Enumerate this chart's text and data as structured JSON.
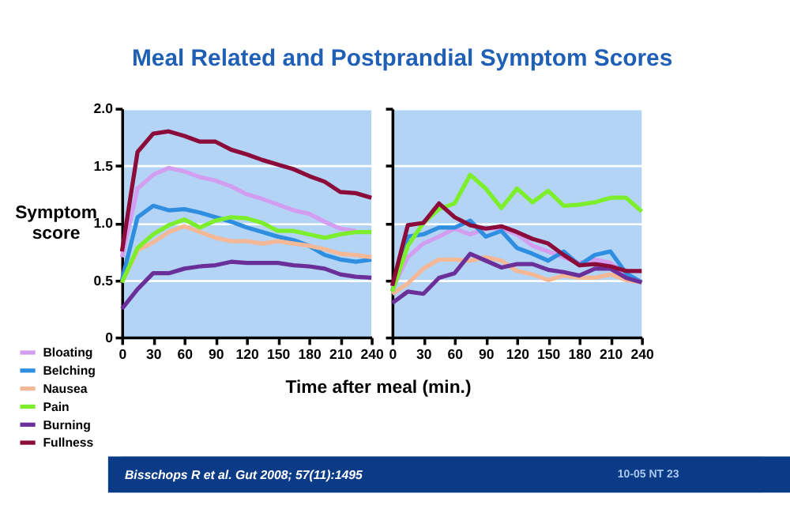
{
  "chart_data": [
    {
      "type": "line",
      "title": "Meal Related and Postprandial Symptom Scores",
      "ylabel": "Symptom score",
      "xlabel": "Time after meal (min.)",
      "annotations": [
        "Bisschops R et al. Gut 2008; 57(11):1495",
        "10-05 NT 23"
      ],
      "x": [
        0,
        15,
        30,
        45,
        60,
        75,
        90,
        105,
        120,
        135,
        150,
        165,
        180,
        195,
        210,
        225,
        240
      ],
      "xlim": [
        0,
        240
      ],
      "xticks": [
        0,
        30,
        60,
        90,
        120,
        150,
        180,
        210,
        240
      ],
      "ylim": [
        0,
        2
      ],
      "yticks": [
        {
          "value": 0,
          "label": "0"
        },
        0.5,
        {
          "value": 1,
          "label": "1.0"
        },
        1.5,
        {
          "value": 2,
          "label": "2.0"
        }
      ],
      "grid": "y",
      "legend": "bottom left",
      "marker": "none",
      "line_style": "solid",
      "series": [
        {
          "name": "Bloating",
          "color": "#d49ef0",
          "values": [
            0.7,
            1.3,
            1.42,
            1.48,
            1.45,
            1.4,
            1.37,
            1.32,
            1.25,
            1.21,
            1.16,
            1.11,
            1.08,
            1.01,
            0.95,
            0.93,
            null
          ]
        },
        {
          "name": "Belching",
          "color": "#2f8ee0",
          "values": [
            0.5,
            1.05,
            1.15,
            1.11,
            1.12,
            1.09,
            1.05,
            1.01,
            0.96,
            0.92,
            0.88,
            0.85,
            0.8,
            0.72,
            0.68,
            0.66,
            0.68
          ]
        },
        {
          "name": "Nausea",
          "color": "#f5b897",
          "values": [
            0.48,
            0.76,
            0.83,
            0.92,
            0.97,
            0.92,
            0.87,
            0.84,
            0.84,
            0.82,
            0.84,
            0.82,
            0.8,
            0.77,
            0.73,
            0.72,
            0.7
          ]
        },
        {
          "name": "Pain",
          "color": "#7cee2c",
          "values": [
            0.48,
            0.78,
            0.9,
            0.98,
            1.03,
            0.96,
            1.02,
            1.05,
            1.04,
            1.0,
            0.93,
            0.93,
            0.9,
            0.87,
            0.9,
            0.92,
            0.92
          ]
        },
        {
          "name": "Burning",
          "color": "#6b2f9a",
          "values": [
            0.25,
            0.42,
            0.56,
            0.56,
            0.6,
            0.62,
            0.63,
            0.66,
            0.65,
            0.65,
            0.65,
            0.63,
            0.62,
            0.6,
            0.55,
            0.53,
            0.52
          ]
        },
        {
          "name": "Fullness",
          "color": "#8b0c3a",
          "values": [
            0.75,
            1.62,
            1.78,
            1.8,
            1.76,
            1.71,
            1.71,
            1.64,
            1.6,
            1.55,
            1.51,
            1.47,
            1.41,
            1.36,
            1.27,
            1.26,
            1.22
          ]
        }
      ]
    },
    {
      "type": "line",
      "x": [
        0,
        15,
        30,
        45,
        60,
        75,
        90,
        105,
        120,
        135,
        150,
        165,
        180,
        195,
        210,
        225,
        240
      ],
      "xlim": [
        0,
        240
      ],
      "xticks": [
        0,
        30,
        60,
        90,
        120,
        150,
        180,
        210,
        240
      ],
      "ylim": [
        0,
        2
      ],
      "yticks": [
        0,
        0.5,
        1,
        1.5,
        2
      ],
      "tick_labels": "x",
      "grid": "y",
      "marker": "none",
      "line_style": "solid",
      "series": [
        {
          "color": "#d49ef0",
          "values": [
            0.42,
            0.7,
            0.82,
            0.88,
            0.95,
            0.9,
            0.95,
            0.95,
            0.9,
            0.8,
            0.75,
            0.7,
            0.65,
            0.68,
            0.65,
            0.55,
            0.48
          ]
        },
        {
          "color": "#2f8ee0",
          "values": [
            0.4,
            0.88,
            0.9,
            0.96,
            0.96,
            1.02,
            0.88,
            0.93,
            0.78,
            0.73,
            0.67,
            0.75,
            0.63,
            0.72,
            0.75,
            0.56,
            0.48
          ]
        },
        {
          "color": "#f5b897",
          "values": [
            0.38,
            0.47,
            0.6,
            0.68,
            0.68,
            0.67,
            0.7,
            0.67,
            0.58,
            0.55,
            0.5,
            0.54,
            0.52,
            0.52,
            0.55,
            0.5,
            0.48
          ]
        },
        {
          "color": "#7cee2c",
          "values": [
            0.4,
            0.8,
            1.0,
            1.12,
            1.17,
            1.42,
            1.3,
            1.13,
            1.3,
            1.18,
            1.28,
            1.15,
            1.16,
            1.18,
            1.22,
            1.22,
            1.1
          ]
        },
        {
          "color": "#6b2f9a",
          "values": [
            0.3,
            0.4,
            0.38,
            0.52,
            0.56,
            0.73,
            0.67,
            0.61,
            0.64,
            0.64,
            0.59,
            0.57,
            0.54,
            0.6,
            0.6,
            0.52,
            0.48
          ]
        },
        {
          "color": "#8b0c3a",
          "values": [
            0.45,
            0.98,
            1.0,
            1.17,
            1.05,
            0.98,
            0.95,
            0.97,
            0.92,
            0.86,
            0.82,
            0.72,
            0.63,
            0.64,
            0.62,
            0.58,
            0.58
          ]
        }
      ]
    }
  ]
}
